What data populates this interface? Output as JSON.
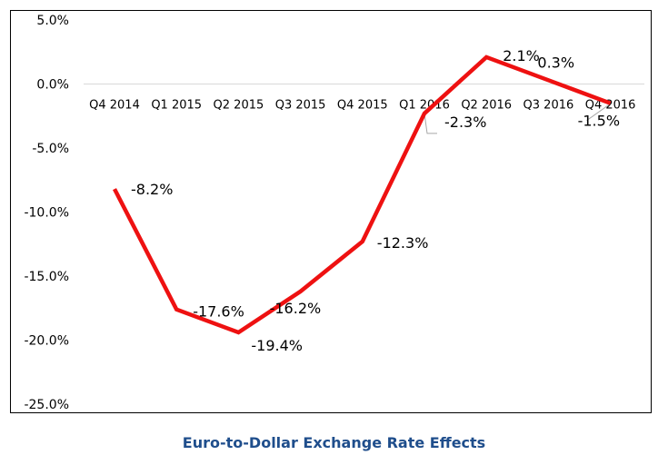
{
  "chart_data": {
    "type": "line",
    "title": "Euro-to-Dollar Exchange Rate Effects",
    "xlabel": "",
    "ylabel": "",
    "categories": [
      "Q4 2014",
      "Q1 2015",
      "Q2 2015",
      "Q3 2015",
      "Q4 2015",
      "Q1 2016",
      "Q2 2016",
      "Q3 2016",
      "Q4 2016"
    ],
    "series": [
      {
        "values": [
          -8.2,
          -17.6,
          -19.4,
          -16.2,
          -12.3,
          -2.3,
          2.1,
          0.3,
          -1.5
        ],
        "data_labels": [
          "-8.2%",
          "-17.6%",
          "-19.4%",
          "-16.2%",
          "-12.3%",
          "-2.3%",
          "2.1%",
          "0.3%",
          "-1.5%"
        ]
      }
    ],
    "ylim": [
      -25,
      5
    ],
    "yticks": [
      5,
      0,
      -5,
      -10,
      -15,
      -20,
      -25
    ],
    "ytick_labels": [
      "5.0%",
      "0.0%",
      "-5.0%",
      "-10.0%",
      "-15.0%",
      "-20.0%",
      "-25.0%"
    ],
    "grid": false,
    "legend": "none"
  },
  "colors": {
    "series_line": "#ee1111",
    "title": "#1f4e8c",
    "axis_line": "#d9d9d9",
    "leader_line": "#a6a6a6"
  }
}
